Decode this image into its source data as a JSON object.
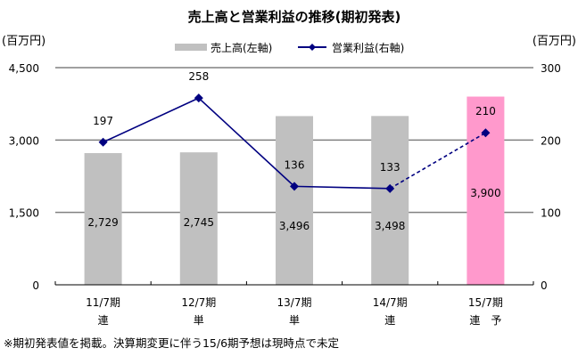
{
  "chart_data": {
    "type": "bar+line",
    "title": "売上高と営業利益の推移(期初発表)",
    "left_axis_unit": "(百万円)",
    "right_axis_unit": "(百万円)",
    "categories": [
      [
        "11/7期",
        "連"
      ],
      [
        "12/7期",
        "単"
      ],
      [
        "13/7期",
        "単"
      ],
      [
        "14/7期",
        "連"
      ],
      [
        "15/7期",
        "連　予"
      ]
    ],
    "left_ylim": [
      0,
      4500
    ],
    "left_ticks": [
      0,
      1500,
      3000,
      4500
    ],
    "left_tick_labels": [
      "0",
      "1,500",
      "3,000",
      "4,500"
    ],
    "right_ylim": [
      0,
      300
    ],
    "right_ticks": [
      0,
      100,
      200,
      300
    ],
    "right_tick_labels": [
      "0",
      "100",
      "200",
      "300"
    ],
    "grid": true,
    "legend_position": "top-center",
    "series": [
      {
        "name": "売上高(左軸)",
        "type": "bar",
        "axis": "left",
        "values": [
          2729,
          2745,
          3496,
          3498,
          3900
        ],
        "labels": [
          "2,729",
          "2,745",
          "3,496",
          "3,498",
          "3,900"
        ],
        "colors": [
          "#c0c0c0",
          "#c0c0c0",
          "#c0c0c0",
          "#c0c0c0",
          "#ff99cc"
        ]
      },
      {
        "name": "営業利益(右軸)",
        "type": "line",
        "axis": "right",
        "values": [
          197,
          258,
          136,
          133,
          210
        ],
        "labels": [
          "197",
          "258",
          "136",
          "133",
          "210"
        ],
        "color": "#000080",
        "dashed_last_segment": true
      }
    ],
    "footnote": "※期初発表値を掲載。決算期変更に伴う15/6期予想は現時点で未定"
  }
}
